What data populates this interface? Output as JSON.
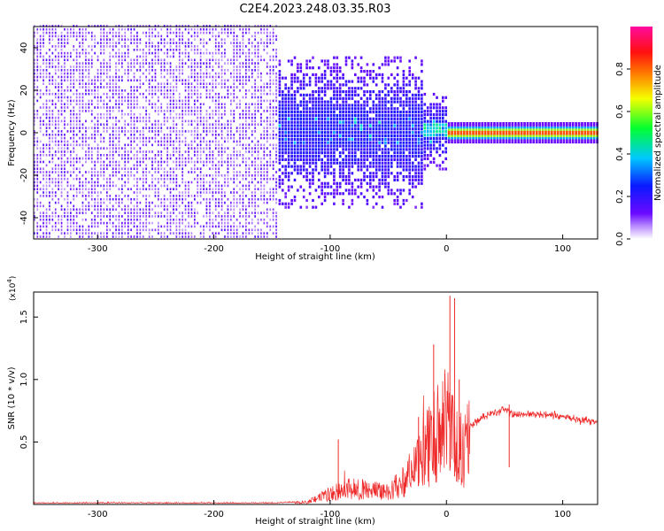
{
  "title": "C2E4.2023.248.03.35.R03",
  "colors": {
    "snr_line": "#ee2a2a",
    "spec_dense": "#5a12e6",
    "spec_light": "#cdb4ff",
    "background": "#ffffff"
  },
  "chart_data": [
    {
      "type": "heatmap",
      "xlabel": "Height of straight line (km)",
      "ylabel": "Frequency (Hz)",
      "xlim": [
        -355,
        130
      ],
      "ylim": [
        -50,
        50
      ],
      "xticks": [
        -300,
        -200,
        -100,
        0,
        100
      ],
      "yticks": [
        -40,
        -20,
        0,
        20,
        40
      ],
      "colorbar": {
        "label": "Normalized spectral amplitude",
        "range": [
          0,
          1
        ],
        "ticks": [
          "0.0",
          "0.2",
          "0.4",
          "0.6",
          "0.8"
        ],
        "colormap": "rainbow (purple-blue-cyan-green-yellow-red-magenta)"
      },
      "regions": [
        {
          "x_range": [
            -355,
            -145
          ],
          "freq_spread": 50,
          "amplitude": 0.1
        },
        {
          "x_range": [
            -145,
            -20
          ],
          "freq_spread": 20,
          "amplitude": 0.2
        },
        {
          "x_range": [
            -20,
            0
          ],
          "freq_spread": 10,
          "amplitude": 0.35
        },
        {
          "x_range": [
            0,
            130
          ],
          "freq_spread": 2,
          "amplitude": 0.8
        }
      ]
    },
    {
      "type": "line",
      "xlabel": "Height of straight line (km)",
      "ylabel": "SNR (10 * v/v)",
      "ylabel_multiplier": "(x10",
      "ylabel_multiplier_exp": "4",
      "ylabel_multiplier_close": ")",
      "xlim": [
        -355,
        130
      ],
      "ylim": [
        0,
        1.7
      ],
      "xticks": [
        -300,
        -200,
        -100,
        0,
        100
      ],
      "yticks": [
        0.5,
        1.0,
        1.5
      ],
      "yticklabels": [
        "0.5",
        "1.0",
        "1.5"
      ],
      "series": [
        {
          "x": [
            -355,
            -300,
            -200,
            -150,
            -120,
            -100,
            -85,
            -70,
            -55,
            -40,
            -25,
            -15,
            -5,
            0,
            5,
            10,
            15,
            20,
            30,
            50,
            60,
            80,
            100,
            130
          ],
          "y": [
            0.01,
            0.01,
            0.01,
            0.01,
            0.02,
            0.1,
            0.15,
            0.13,
            0.12,
            0.18,
            0.35,
            0.55,
            0.7,
            0.8,
            0.6,
            0.5,
            0.5,
            0.62,
            0.7,
            0.76,
            0.72,
            0.72,
            0.7,
            0.66
          ],
          "peaks": [
            {
              "x": -93,
              "y": 0.52
            },
            {
              "x": -24,
              "y": 0.7
            },
            {
              "x": -11,
              "y": 1.28
            },
            {
              "x": 3,
              "y": 1.67
            },
            {
              "x": 7,
              "y": 1.65
            },
            {
              "x": 11,
              "y": 1.0
            },
            {
              "x": 54,
              "y": 0.8
            }
          ]
        }
      ]
    }
  ]
}
